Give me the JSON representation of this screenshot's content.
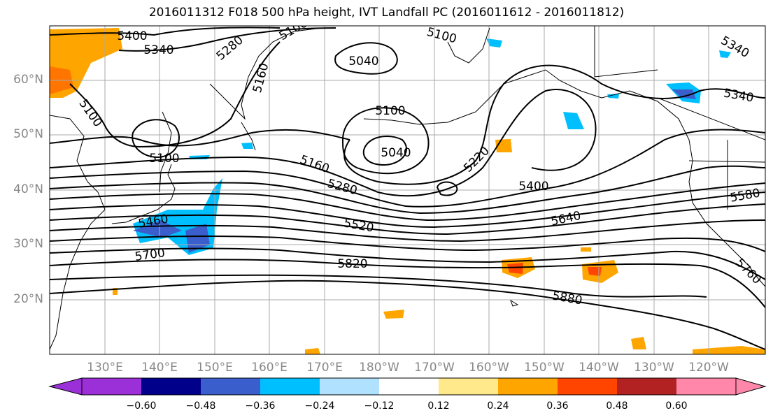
{
  "title": "2016011312 F018 500 hPa height, IVT Landfall PC (2016011612 - 2016011812)",
  "map": {
    "lat_labels": [
      "60°N",
      "50°N",
      "40°N",
      "30°N",
      "20°N"
    ],
    "lon_labels": [
      "130°E",
      "140°E",
      "150°E",
      "160°E",
      "170°E",
      "180°W",
      "170°W",
      "160°W",
      "150°W",
      "140°W",
      "130°W",
      "120°W"
    ],
    "contour_labels": [
      "5400",
      "5340",
      "5280",
      "5160",
      "5100",
      "5040",
      "5100",
      "5100",
      "5340",
      "5340",
      "5100",
      "5100",
      "5040",
      "5160",
      "5220",
      "5280",
      "5400",
      "5460",
      "5520",
      "5580",
      "5640",
      "5700",
      "5820",
      "5760",
      "5880"
    ],
    "colors": {
      "contour": "#000000",
      "grid": "#aaaaaa",
      "coast": "#000000"
    }
  },
  "colorbar": {
    "tick_labels": [
      "−0.60",
      "−0.48",
      "−0.36",
      "−0.24",
      "−0.12",
      "0.12",
      "0.24",
      "0.36",
      "0.48",
      "0.60"
    ],
    "colors": [
      "#9b30d9",
      "#00008b",
      "#3a5fcd",
      "#00bfff",
      "#b0e2ff",
      "#ffffff",
      "#ffe98a",
      "#ffa500",
      "#ff4500",
      "#b22222",
      "#ff88aa"
    ]
  }
}
